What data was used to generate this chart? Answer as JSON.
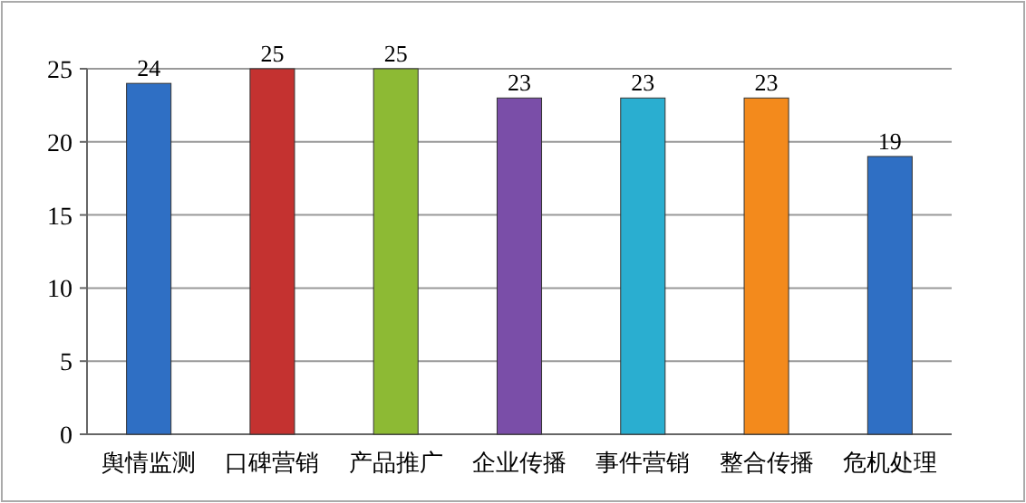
{
  "chart_data": {
    "type": "bar",
    "categories": [
      "舆情监测",
      "口碑营销",
      "产品推广",
      "企业传播",
      "事件营销",
      "整合传播",
      "危机处理"
    ],
    "values": [
      24,
      25,
      25,
      23,
      23,
      23,
      19
    ],
    "colors": [
      "#2f6fc4",
      "#c43230",
      "#8dba34",
      "#7a4ea8",
      "#2aaed0",
      "#f38a1c",
      "#2f6fc4"
    ],
    "ylim": [
      0,
      25
    ],
    "yticks": [
      0,
      5,
      10,
      15,
      20,
      25
    ],
    "grid": "y",
    "data_labels": true
  }
}
